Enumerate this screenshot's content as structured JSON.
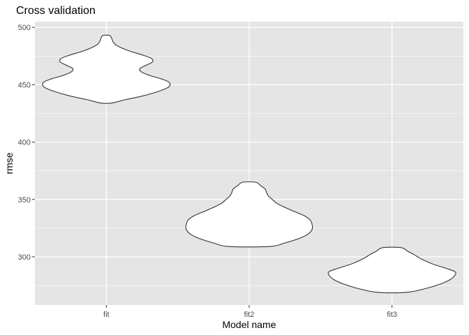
{
  "chart_data": {
    "type": "violin",
    "title": "Cross validation",
    "xlabel": "Model name",
    "ylabel": "rmse",
    "categories": [
      "fit",
      "fit2",
      "fit3"
    ],
    "ylim": [
      258,
      505
    ],
    "yticks": [
      300,
      350,
      400,
      450,
      500
    ],
    "grid": true,
    "legend": "none",
    "colors": {
      "panel": "#e5e5e5",
      "grid_major": "#ffffff",
      "violin_fill": "#ffffff",
      "violin_stroke": "#333333"
    },
    "violins": [
      {
        "name": "fit",
        "y_min": 434,
        "y_max": 493,
        "profile": [
          [
            434,
            0.08
          ],
          [
            437,
            0.3
          ],
          [
            440,
            0.55
          ],
          [
            444,
            0.8
          ],
          [
            448,
            0.97
          ],
          [
            452,
            0.98
          ],
          [
            455,
            0.86
          ],
          [
            458,
            0.68
          ],
          [
            461,
            0.55
          ],
          [
            464,
            0.52
          ],
          [
            467,
            0.62
          ],
          [
            470,
            0.72
          ],
          [
            473,
            0.7
          ],
          [
            476,
            0.56
          ],
          [
            479,
            0.38
          ],
          [
            482,
            0.24
          ],
          [
            485,
            0.14
          ],
          [
            488,
            0.1
          ],
          [
            491,
            0.08
          ],
          [
            493,
            0.05
          ]
        ]
      },
      {
        "name": "fit2",
        "y_min": 309,
        "y_max": 365,
        "profile": [
          [
            309,
            0.32
          ],
          [
            312,
            0.55
          ],
          [
            316,
            0.78
          ],
          [
            320,
            0.92
          ],
          [
            324,
            0.98
          ],
          [
            328,
            0.98
          ],
          [
            332,
            0.95
          ],
          [
            336,
            0.85
          ],
          [
            340,
            0.68
          ],
          [
            344,
            0.52
          ],
          [
            347,
            0.42
          ],
          [
            350,
            0.36
          ],
          [
            353,
            0.3
          ],
          [
            356,
            0.27
          ],
          [
            359,
            0.25
          ],
          [
            362,
            0.18
          ],
          [
            365,
            0.1
          ]
        ]
      },
      {
        "name": "fit3",
        "y_min": 269,
        "y_max": 308,
        "profile": [
          [
            269,
            0.22
          ],
          [
            272,
            0.5
          ],
          [
            276,
            0.74
          ],
          [
            280,
            0.9
          ],
          [
            284,
            0.98
          ],
          [
            287,
            0.98
          ],
          [
            290,
            0.84
          ],
          [
            294,
            0.62
          ],
          [
            298,
            0.46
          ],
          [
            302,
            0.34
          ],
          [
            305,
            0.24
          ],
          [
            308,
            0.14
          ]
        ]
      }
    ]
  }
}
